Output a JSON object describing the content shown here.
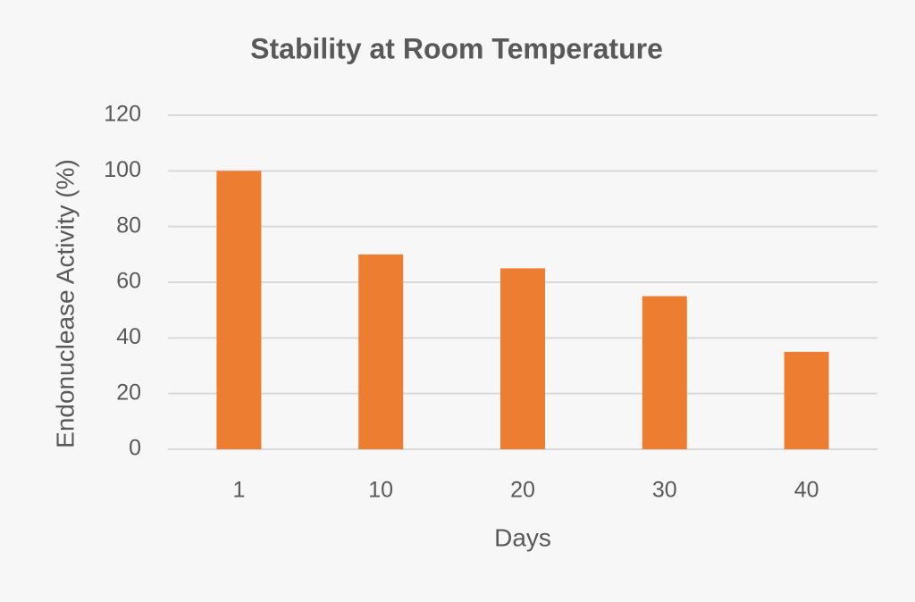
{
  "chart_data": {
    "type": "bar",
    "title": "Stability at Room Temperature",
    "x_label": "Days",
    "y_label": "Endonuclease Activity (%)",
    "categories": [
      "1",
      "10",
      "20",
      "30",
      "40"
    ],
    "values": [
      100,
      70,
      65,
      55,
      35
    ],
    "color": "#ed7d31",
    "ylim": [
      0,
      120
    ],
    "yticks": [
      0,
      20,
      40,
      60,
      80,
      100,
      120
    ],
    "grid": true
  }
}
